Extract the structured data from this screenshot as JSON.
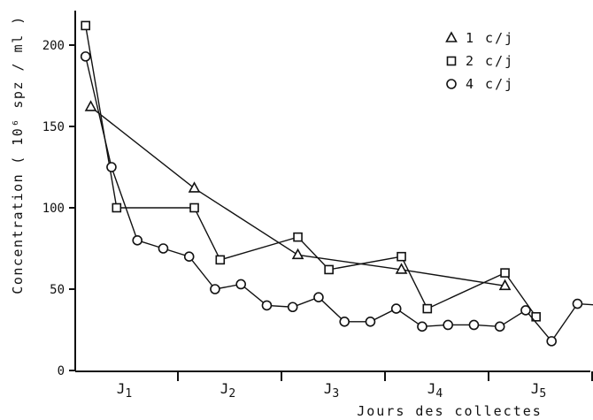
{
  "chart_data": {
    "type": "line",
    "xlabel": "Jours des collectes",
    "ylabel": "Concentration",
    "ylabel_unit": "( 10⁶ spz / ml )",
    "ylim": [
      0,
      220
    ],
    "yticks": [
      0,
      50,
      100,
      150,
      200
    ],
    "categories": [
      "J1",
      "J2",
      "J3",
      "J4",
      "J5"
    ],
    "grid": false,
    "legend": "top-right",
    "series": [
      {
        "name": "1 c/j",
        "marker": "triangle",
        "x": [
          0.15,
          1.15,
          2.15,
          3.15,
          4.15
        ],
        "y": [
          162,
          112,
          71,
          62,
          52
        ]
      },
      {
        "name": "2 c/j",
        "marker": "square",
        "x": [
          0.1,
          0.4,
          1.15,
          1.4,
          2.15,
          2.45,
          3.15,
          3.4,
          4.15,
          4.45
        ],
        "y": [
          212,
          100,
          100,
          68,
          82,
          62,
          70,
          38,
          60,
          33
        ]
      },
      {
        "name": "4 c/j",
        "marker": "circle",
        "x": [
          0.1,
          0.35,
          0.6,
          0.85,
          1.1,
          1.35,
          1.6,
          1.85,
          2.1,
          2.35,
          2.6,
          2.85,
          3.1,
          3.35,
          3.6,
          3.85,
          4.1,
          4.35,
          4.6,
          4.85,
          5.1
        ],
        "y": [
          193,
          125,
          80,
          75,
          70,
          50,
          53,
          40,
          39,
          45,
          30,
          30,
          38,
          27,
          28,
          28,
          27,
          37,
          18,
          41,
          40
        ]
      }
    ]
  }
}
